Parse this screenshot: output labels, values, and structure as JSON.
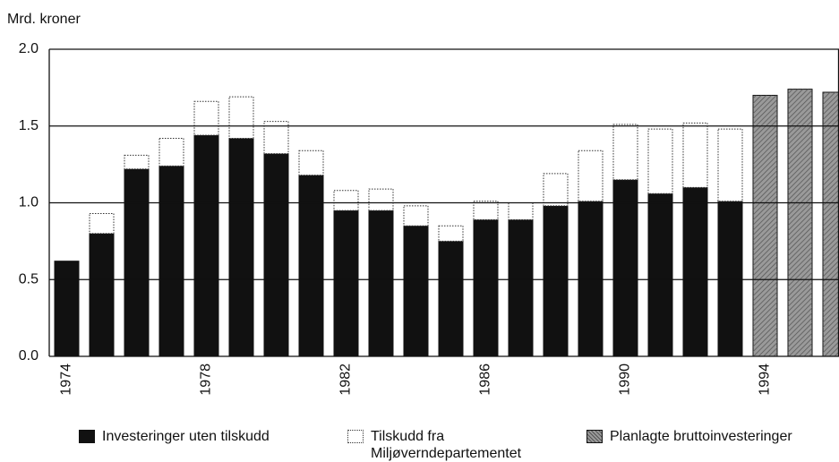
{
  "chart_data": {
    "type": "stacked-bar",
    "y_label": "Mrd. kroner",
    "categories": [
      "1974",
      null,
      null,
      null,
      "1978",
      null,
      null,
      null,
      "1982",
      null,
      null,
      null,
      "1986",
      null,
      null,
      null,
      "1990",
      null,
      null,
      null,
      "1994",
      null,
      null
    ],
    "series": [
      {
        "name": "Investeringer uten tilskudd",
        "color": "#111111",
        "values": [
          0.62,
          0.8,
          1.22,
          1.24,
          1.44,
          1.42,
          1.32,
          1.18,
          0.95,
          0.95,
          0.85,
          0.75,
          0.89,
          0.89,
          0.98,
          1.01,
          1.15,
          1.06,
          1.1,
          1.01,
          null,
          null,
          null
        ]
      },
      {
        "name": "Tilskudd fra Miljøverndepartementet",
        "color": "#ffffff",
        "values": [
          null,
          0.13,
          0.09,
          0.18,
          0.22,
          0.27,
          0.21,
          0.16,
          0.13,
          0.14,
          0.13,
          0.1,
          0.12,
          0.11,
          0.21,
          0.33,
          0.36,
          0.42,
          0.42,
          0.47,
          null,
          null,
          null
        ]
      },
      {
        "name": "Planlagte bruttoinvesteringer",
        "color": "#9a9a9a",
        "values": [
          null,
          null,
          null,
          null,
          null,
          null,
          null,
          null,
          null,
          null,
          null,
          null,
          null,
          null,
          null,
          null,
          null,
          null,
          null,
          null,
          1.7,
          1.74,
          1.72
        ]
      }
    ],
    "ylim": [
      0,
      2
    ],
    "yticks": [
      {
        "value": 0,
        "label": "0.0"
      },
      0.5,
      {
        "value": 1,
        "label": "1.0"
      },
      1.5,
      {
        "value": 2,
        "label": "2.0"
      }
    ],
    "grid": true,
    "legend": "bottom"
  }
}
